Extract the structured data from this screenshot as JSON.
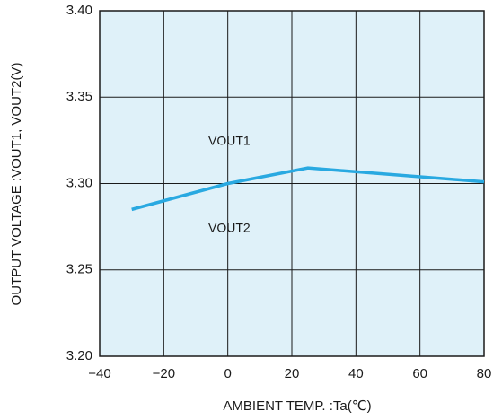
{
  "chart_data": {
    "type": "line",
    "xlabel": "AMBIENT TEMP. :Ta(℃)",
    "ylabel": "OUTPUT VOLTAGE :VOUT1, VOUT2(V)",
    "annotations": [
      "VOUT1",
      "VOUT2"
    ],
    "x": [
      -30,
      0,
      25,
      80
    ],
    "series": [
      {
        "color": "#29a9e1",
        "values": [
          3.285,
          3.3,
          3.309,
          3.301
        ]
      }
    ],
    "xlim": [
      -40,
      80
    ],
    "xticks": [
      {
        "value": -40,
        "label": "−40"
      },
      {
        "value": -20,
        "label": "−20"
      },
      0,
      20,
      40,
      60,
      80
    ],
    "ylim": [
      3.2,
      3.4
    ],
    "yticks": [
      {
        "value": 3.2,
        "label": "3.20"
      },
      {
        "value": 3.25,
        "label": "3.25"
      },
      {
        "value": 3.3,
        "label": "3.30"
      },
      {
        "value": 3.35,
        "label": "3.35"
      },
      {
        "value": 3.4,
        "label": "3.40"
      }
    ],
    "grid": true,
    "background": "#dff1f9"
  }
}
